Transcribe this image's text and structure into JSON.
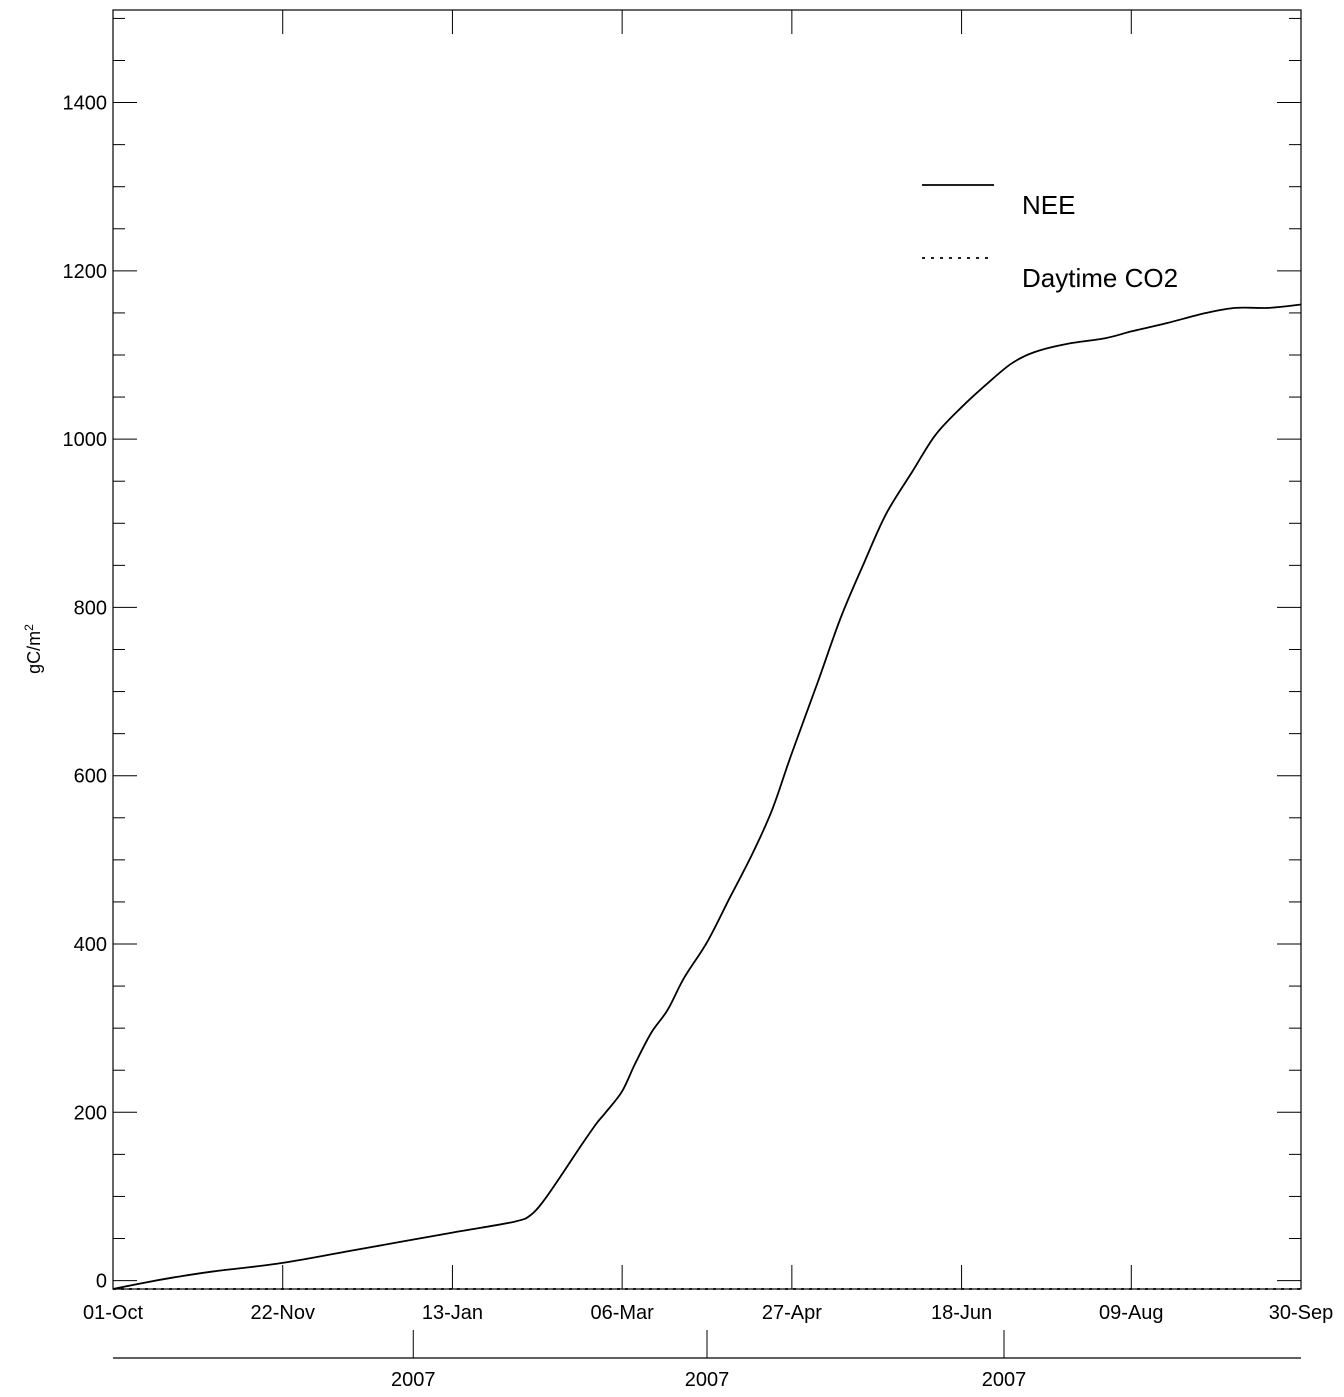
{
  "chart_data": {
    "type": "line",
    "title": "",
    "ylabel": "gC/m",
    "ylabel_superscript": "2",
    "ylim": [
      -10,
      1510
    ],
    "xlim": [
      "2006-10-01",
      "2007-09-30"
    ],
    "y_ticks": [
      0,
      200,
      400,
      600,
      800,
      1000,
      1200,
      1400
    ],
    "y_minor_step": 50,
    "x_ticks": [
      {
        "date": "2006-10-01",
        "label": "01-Oct"
      },
      {
        "date": "2006-11-22",
        "label": "22-Nov"
      },
      {
        "date": "2007-01-13",
        "label": "13-Jan"
      },
      {
        "date": "2007-03-06",
        "label": "06-Mar"
      },
      {
        "date": "2007-04-27",
        "label": "27-Apr"
      },
      {
        "date": "2007-06-18",
        "label": "18-Jun"
      },
      {
        "date": "2007-08-09",
        "label": "09-Aug"
      },
      {
        "date": "2007-09-30",
        "label": "30-Sep"
      }
    ],
    "year_labels": [
      {
        "date": "2007-01-01",
        "label": "2007"
      },
      {
        "date": "2007-04-01",
        "label": "2007"
      },
      {
        "date": "2007-07-01",
        "label": "2007"
      }
    ],
    "grid": false,
    "legend_position": "top-right",
    "series": [
      {
        "name": "NEE",
        "style": "solid",
        "color": "#000000",
        "points": [
          {
            "x": "2006-10-01",
            "y": -10
          },
          {
            "x": "2006-10-10",
            "y": -3
          },
          {
            "x": "2006-10-20",
            "y": 4
          },
          {
            "x": "2006-11-01",
            "y": 11
          },
          {
            "x": "2006-11-22",
            "y": 21
          },
          {
            "x": "2006-12-15",
            "y": 37
          },
          {
            "x": "2007-01-13",
            "y": 57
          },
          {
            "x": "2007-02-01",
            "y": 70
          },
          {
            "x": "2007-02-06",
            "y": 78
          },
          {
            "x": "2007-02-10",
            "y": 95
          },
          {
            "x": "2007-02-15",
            "y": 123
          },
          {
            "x": "2007-02-21",
            "y": 158
          },
          {
            "x": "2007-02-26",
            "y": 186
          },
          {
            "x": "2007-03-01",
            "y": 200
          },
          {
            "x": "2007-03-06",
            "y": 225
          },
          {
            "x": "2007-03-10",
            "y": 258
          },
          {
            "x": "2007-03-15",
            "y": 295
          },
          {
            "x": "2007-03-20",
            "y": 322
          },
          {
            "x": "2007-03-25",
            "y": 360
          },
          {
            "x": "2007-04-01",
            "y": 402
          },
          {
            "x": "2007-04-08",
            "y": 455
          },
          {
            "x": "2007-04-15",
            "y": 508
          },
          {
            "x": "2007-04-21",
            "y": 560
          },
          {
            "x": "2007-04-27",
            "y": 627
          },
          {
            "x": "2007-05-05",
            "y": 712
          },
          {
            "x": "2007-05-12",
            "y": 788
          },
          {
            "x": "2007-05-19",
            "y": 852
          },
          {
            "x": "2007-05-26",
            "y": 912
          },
          {
            "x": "2007-06-03",
            "y": 962
          },
          {
            "x": "2007-06-10",
            "y": 1005
          },
          {
            "x": "2007-06-18",
            "y": 1038
          },
          {
            "x": "2007-06-25",
            "y": 1063
          },
          {
            "x": "2007-07-03",
            "y": 1089
          },
          {
            "x": "2007-07-10",
            "y": 1103
          },
          {
            "x": "2007-07-20",
            "y": 1113
          },
          {
            "x": "2007-08-01",
            "y": 1120
          },
          {
            "x": "2007-08-09",
            "y": 1128
          },
          {
            "x": "2007-08-20",
            "y": 1138
          },
          {
            "x": "2007-09-01",
            "y": 1150
          },
          {
            "x": "2007-09-10",
            "y": 1156
          },
          {
            "x": "2007-09-20",
            "y": 1156
          },
          {
            "x": "2007-09-30",
            "y": 1160
          }
        ]
      },
      {
        "name": "Daytime CO2",
        "style": "dotted",
        "color": "#000000",
        "points": [
          {
            "x": "2006-10-01",
            "y": -10
          },
          {
            "x": "2007-09-30",
            "y": -10
          }
        ]
      }
    ]
  }
}
